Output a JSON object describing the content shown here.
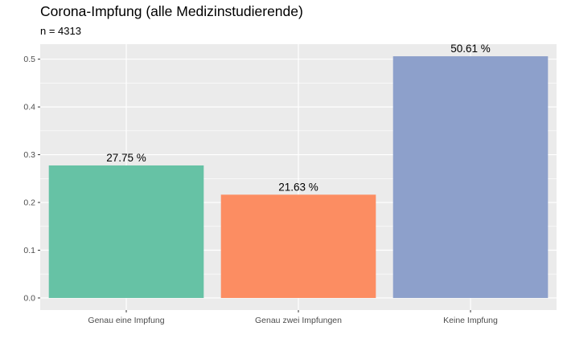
{
  "chart_data": {
    "type": "bar",
    "title": "Corona-Impfung (alle Medizinstudierende)",
    "subtitle": "n = 4313",
    "xlabel": "",
    "ylabel": "",
    "categories": [
      "Genau eine Impfung",
      "Genau zwei Impfungen",
      "Keine Impfung"
    ],
    "values": [
      0.2775,
      0.2163,
      0.5061
    ],
    "data_labels": [
      "27.75 %",
      "21.63 %",
      "50.61 %"
    ],
    "colors": [
      "#66c2a5",
      "#fc8d62",
      "#8da0cb"
    ],
    "ylim": [
      -0.0253,
      0.5314
    ],
    "yticks": [
      0.0,
      0.1,
      0.2,
      0.3,
      0.4,
      0.5
    ],
    "ytick_labels": [
      "0.0",
      "0.1",
      "0.2",
      "0.3",
      "0.4",
      "0.5"
    ],
    "grid": true,
    "legend": "none",
    "panel_background": "#ebebeb"
  }
}
